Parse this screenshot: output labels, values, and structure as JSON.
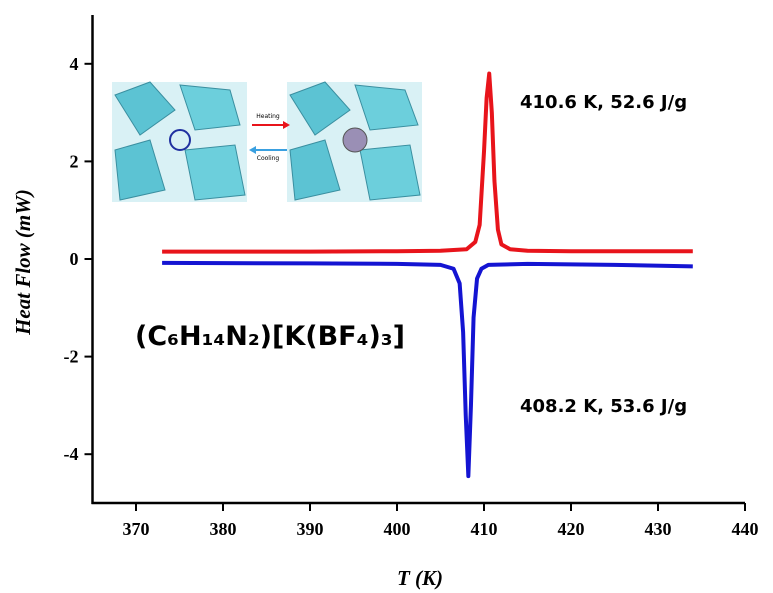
{
  "chart_data": {
    "type": "line",
    "xlabel": "T (K)",
    "ylabel": "Heat Flow (mW)",
    "xlim": [
      365,
      440
    ],
    "xticks": [
      370,
      380,
      390,
      400,
      410,
      420,
      430,
      440
    ],
    "ylim": [
      -5,
      5
    ],
    "yticks": [
      -4,
      -2,
      0,
      2,
      4
    ],
    "series": [
      {
        "color": "#e8141b",
        "x": [
          373,
          380,
          390,
          400,
          405,
          408,
          409,
          409.5,
          410,
          410.3,
          410.6,
          410.9,
          411.2,
          411.6,
          412,
          413,
          415,
          420,
          430,
          434
        ],
        "values": [
          0.15,
          0.15,
          0.15,
          0.16,
          0.17,
          0.2,
          0.35,
          0.7,
          2.2,
          3.3,
          3.8,
          3.0,
          1.6,
          0.6,
          0.3,
          0.2,
          0.17,
          0.16,
          0.16,
          0.16
        ]
      },
      {
        "color": "#1414d2",
        "x": [
          373,
          390,
          400,
          405,
          406.5,
          407.2,
          407.6,
          407.9,
          408.2,
          408.5,
          408.8,
          409.2,
          409.7,
          410.5,
          415,
          425,
          434
        ],
        "values": [
          -0.08,
          -0.09,
          -0.1,
          -0.12,
          -0.2,
          -0.5,
          -1.5,
          -3.2,
          -4.45,
          -3.0,
          -1.2,
          -0.4,
          -0.2,
          -0.12,
          -0.1,
          -0.12,
          -0.15
        ]
      }
    ],
    "annotations": [
      "410.6 K, 52.6 J/g",
      "408.2 K, 53.6 J/g",
      "(C₆H₁₄N₂)[K(BF₄)₃]"
    ],
    "inset_labels": [
      "Heating",
      "Cooling"
    ]
  }
}
